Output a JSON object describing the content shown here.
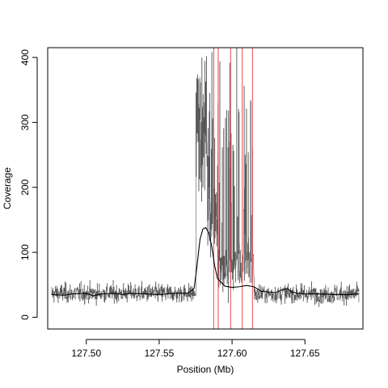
{
  "chart_data": {
    "type": "line",
    "title": "",
    "xlabel": "Position (Mb)",
    "ylabel": "Coverage",
    "xlim": [
      127.4735,
      127.6898
    ],
    "ylim": [
      -18,
      415
    ],
    "x_ticks": [
      127.5,
      127.55,
      127.6,
      127.65
    ],
    "x_tick_labels": [
      "127.50",
      "127.55",
      "127.60",
      "127.65"
    ],
    "y_ticks": [
      0,
      100,
      200,
      300,
      400
    ],
    "y_tick_labels": [
      "0",
      "100",
      "200",
      "300",
      "400"
    ],
    "grid": false,
    "legend": "none",
    "colors": {
      "raw": "#555555",
      "smooth": "#000000",
      "markers": "#e84a4a",
      "frame": "#000000"
    },
    "raw_coverage": {
      "x_range": [
        127.476,
        127.687
      ],
      "segments": [
        {
          "x": [
            127.476,
            127.575
          ],
          "baseline": 37,
          "spread": 30
        },
        {
          "x": [
            127.575,
            127.583
          ],
          "baseline": 260,
          "spread": 180,
          "max": 415
        },
        {
          "x": [
            127.583,
            127.59
          ],
          "baseline": 150,
          "spread": 140,
          "max": 415
        },
        {
          "x": [
            127.59,
            127.615
          ],
          "baseline": 80,
          "spread": 90,
          "max": 415
        },
        {
          "x": [
            127.615,
            127.687
          ],
          "baseline": 36,
          "spread": 30
        }
      ]
    },
    "smoothed": {
      "x": [
        127.476,
        127.485,
        127.49,
        127.5,
        127.505,
        127.51,
        127.52,
        127.525,
        127.53,
        127.54,
        127.55,
        127.56,
        127.57,
        127.574,
        127.576,
        127.578,
        127.58,
        127.582,
        127.584,
        127.586,
        127.588,
        127.59,
        127.595,
        127.6,
        127.605,
        127.61,
        127.615,
        127.62,
        127.63,
        127.635,
        127.638,
        127.641,
        127.645,
        127.65,
        127.66,
        127.67,
        127.68,
        127.687
      ],
      "y": [
        35,
        34,
        36,
        37,
        33,
        36,
        37,
        35,
        37,
        36,
        35,
        37,
        37,
        45,
        80,
        120,
        136,
        138,
        130,
        110,
        80,
        60,
        48,
        46,
        47,
        49,
        47,
        40,
        38,
        43,
        44,
        39,
        37,
        36,
        36,
        35,
        35,
        36
      ]
    },
    "markers": [
      127.5874,
      127.5905,
      127.599,
      127.607,
      127.614
    ]
  }
}
